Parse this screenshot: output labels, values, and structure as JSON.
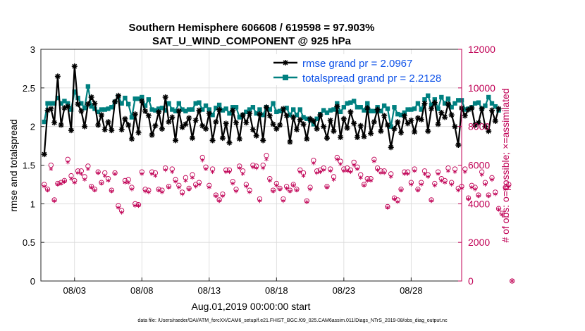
{
  "chart_data": {
    "type": "line",
    "title_line1": "Southern Hemisphere 606608 / 619598 = 97.903%",
    "title_line2": "SAT_U_WIND_COMPONENT @ 925 hPa",
    "xlabel": "Aug.01,2019 00:00:00 start",
    "ylabel_left": "rmse and totalspread",
    "ylabel_right": "# of obs: o=possible; ×=assimilated",
    "footer": "data file: /Users/raeder/DAI/ATM_forcXX/CAM6_setup/f.e21.FHIST_BGC.f09_025.CAM6assim.011/Diags_NTrS_2019-08/obs_diag_output.nc",
    "xlim": [
      0.5,
      31.75
    ],
    "x_ticks": [
      3,
      8,
      13,
      18,
      23,
      28
    ],
    "x_tick_labels": [
      "08/03",
      "08/08",
      "08/13",
      "08/18",
      "08/23",
      "08/28"
    ],
    "ylim_left": [
      0,
      3
    ],
    "y_ticks_left": [
      "0",
      "0.5",
      "1",
      "1.5",
      "2",
      "2.5",
      "3"
    ],
    "ylim_right": [
      0,
      12000
    ],
    "y_ticks_right": [
      "0",
      "2000",
      "4000",
      "6000",
      "8000",
      "10000",
      "12000"
    ],
    "legend": {
      "placement": "top-right",
      "rmse_label": "rmse grand pr = 2.0967",
      "spread_label": "totalspread grand pr = 2.2128"
    },
    "colors": {
      "rmse": "#000000",
      "spread": "#008080",
      "obs": "#c00055",
      "legend_text": "#0b50e8"
    },
    "series": [
      {
        "name": "rmse",
        "values": [
          1.64,
          2.21,
          2.23,
          2.05,
          2.65,
          2.02,
          2.24,
          2.26,
          1.95,
          2.78,
          2.29,
          2.2,
          2.0,
          2.29,
          2.38,
          2.3,
          2.02,
          2.15,
          1.96,
          2.06,
          1.95,
          2.32,
          2.4,
          1.96,
          2.1,
          2.02,
          1.84,
          2.16,
          1.92,
          2.33,
          2.2,
          2.14,
          1.89,
          2.01,
          2.19,
          1.97,
          2.38,
          2.06,
          2.12,
          1.82,
          2.2,
          1.99,
          2.03,
          2.11,
          1.85,
          2.08,
          2.21,
          2.01,
          1.97,
          2.17,
          1.82,
          2.06,
          2.22,
          1.85,
          2.04,
          1.79,
          2.21,
          2.05,
          1.84,
          2.15,
          2.05,
          2.17,
          1.96,
          1.88,
          2.16,
          1.82,
          2.25,
          2.14,
          2.03,
          1.97,
          2.02,
          2.23,
          2.14,
          1.8,
          2.12,
          1.96,
          2.09,
          2.03,
          1.84,
          2.1,
          2.07,
          1.97,
          2.15,
          2.0,
          1.85,
          2.08,
          1.94,
          2.26,
          1.86,
          2.1,
          1.98,
          2.19,
          2.04,
          1.86,
          2.01,
          1.87,
          2.24,
          1.91,
          2.06,
          2.22,
          1.94,
          2.14,
          2.02,
          1.73,
          1.97,
          2.06,
          1.92,
          2.14,
          2.04,
          2.08,
          1.93,
          2.11,
          2.09,
          2.3,
          1.94,
          2.23,
          2.31,
          2.03,
          2.18,
          2.12,
          2.29,
          2.15,
          2.0,
          1.76,
          2.24,
          2.14,
          2.22,
          2.24,
          2.02,
          2.05,
          2.23,
          2.0,
          1.94,
          2.21,
          2.07,
          2.23
        ]
      },
      {
        "name": "totalspread",
        "values": [
          2.06,
          2.3,
          2.3,
          2.3,
          2.37,
          2.3,
          2.33,
          2.3,
          2.22,
          2.45,
          2.37,
          2.3,
          2.24,
          2.52,
          2.26,
          2.23,
          2.19,
          2.22,
          2.22,
          2.23,
          2.25,
          2.32,
          2.39,
          2.3,
          2.37,
          2.29,
          2.12,
          2.36,
          2.36,
          2.38,
          2.27,
          2.35,
          2.22,
          2.21,
          2.23,
          2.24,
          2.21,
          2.3,
          2.22,
          2.2,
          2.3,
          2.22,
          2.2,
          2.22,
          2.22,
          2.3,
          2.31,
          2.22,
          2.27,
          2.22,
          2.15,
          2.24,
          2.28,
          2.21,
          2.23,
          2.17,
          2.25,
          2.25,
          2.12,
          2.15,
          2.19,
          2.22,
          2.25,
          2.17,
          2.22,
          2.15,
          2.25,
          2.22,
          2.3,
          2.19,
          2.2,
          2.21,
          2.24,
          2.15,
          2.22,
          2.15,
          2.22,
          2.12,
          2.1,
          2.08,
          2.03,
          2.1,
          2.16,
          2.21,
          2.18,
          2.21,
          2.22,
          2.3,
          2.19,
          2.25,
          2.3,
          2.31,
          2.33,
          2.25,
          2.25,
          2.21,
          2.3,
          2.2,
          2.2,
          2.25,
          2.2,
          2.27,
          2.23,
          2.0,
          2.25,
          2.16,
          2.15,
          2.18,
          2.22,
          2.22,
          2.23,
          2.3,
          2.22,
          2.35,
          2.4,
          2.28,
          2.35,
          2.23,
          2.38,
          2.3,
          2.36,
          2.25,
          2.3,
          2.34,
          2.34,
          2.22,
          2.23,
          2.25,
          2.3,
          2.31,
          2.23,
          2.27,
          2.38,
          2.3,
          2.26,
          2.21
        ]
      },
      {
        "name": "obs_possible",
        "values": [
          5000,
          4750,
          6000,
          4200,
          5050,
          5100,
          5200,
          6300,
          5450,
          5200,
          5700,
          5700,
          5400,
          5950,
          4900,
          4750,
          5650,
          5100,
          5600,
          5300,
          4700,
          5600,
          3900,
          3650,
          5200,
          5250,
          4850,
          4000,
          3950,
          5650,
          4750,
          4700,
          5650,
          5600,
          4750,
          4700,
          5850,
          4900,
          5800,
          5250,
          4950,
          4600,
          5350,
          4800,
          5500,
          5000,
          5100,
          6400,
          5900,
          4950,
          5800,
          4450,
          4200,
          4500,
          5750,
          5750,
          5150,
          4750,
          5950,
          5700,
          5000,
          4700,
          6000,
          5950,
          4250,
          6000,
          6500,
          5300,
          4700,
          5050,
          4800,
          4250,
          4900,
          4700,
          5000,
          4750,
          5750,
          5600,
          4150,
          4850,
          6250,
          5700,
          5750,
          5850,
          4900,
          5800,
          5400,
          6400,
          6200,
          5800,
          5850,
          5750,
          6150,
          5900,
          5500,
          5000,
          5300,
          5300,
          6300,
          5850,
          5700,
          5700,
          3850,
          5550,
          4300,
          4200,
          4750,
          5650,
          5650,
          5100,
          5800,
          4750,
          5100,
          5700,
          5500,
          4200,
          5050,
          5650,
          5300,
          5200,
          5850,
          5100,
          5800,
          4800,
          4900,
          5800,
          4300,
          4950,
          4850,
          4450,
          5650,
          5100,
          4450,
          5350,
          4600,
          3750,
          3500,
          4850,
          5000,
          0
        ]
      },
      {
        "name": "obs_assimilated",
        "values": [
          4900,
          4700,
          5800,
          4150,
          5000,
          5050,
          5150,
          6150,
          5300,
          5100,
          5600,
          5550,
          5250,
          5800,
          4850,
          4700,
          5600,
          5050,
          5450,
          5200,
          4650,
          5550,
          3800,
          3550,
          5100,
          5100,
          4750,
          3900,
          3900,
          5550,
          4650,
          4600,
          5550,
          5450,
          4700,
          4600,
          5750,
          4850,
          5650,
          5150,
          4850,
          4500,
          5200,
          4750,
          5350,
          4900,
          5000,
          6250,
          5800,
          4850,
          5650,
          4400,
          4150,
          4400,
          5650,
          5650,
          5050,
          4650,
          5850,
          5550,
          4900,
          4600,
          5900,
          5850,
          4150,
          5850,
          6300,
          5200,
          4650,
          4950,
          4750,
          4150,
          4800,
          4650,
          4950,
          4700,
          5650,
          5450,
          4100,
          4750,
          6100,
          5600,
          5650,
          5750,
          4850,
          5700,
          5250,
          6300,
          6050,
          5700,
          5700,
          5650,
          6000,
          5800,
          5350,
          4950,
          5200,
          5200,
          6200,
          5750,
          5600,
          5600,
          3800,
          5400,
          4250,
          4100,
          4700,
          5550,
          5550,
          5000,
          5700,
          4700,
          5000,
          5550,
          5400,
          4150,
          4950,
          5550,
          5200,
          5100,
          5700,
          5000,
          5650,
          4700,
          4800,
          5650,
          4250,
          4850,
          4750,
          4400,
          5500,
          5000,
          4400,
          5250,
          4500,
          3700,
          3450,
          4750,
          4900,
          0
        ]
      }
    ]
  }
}
